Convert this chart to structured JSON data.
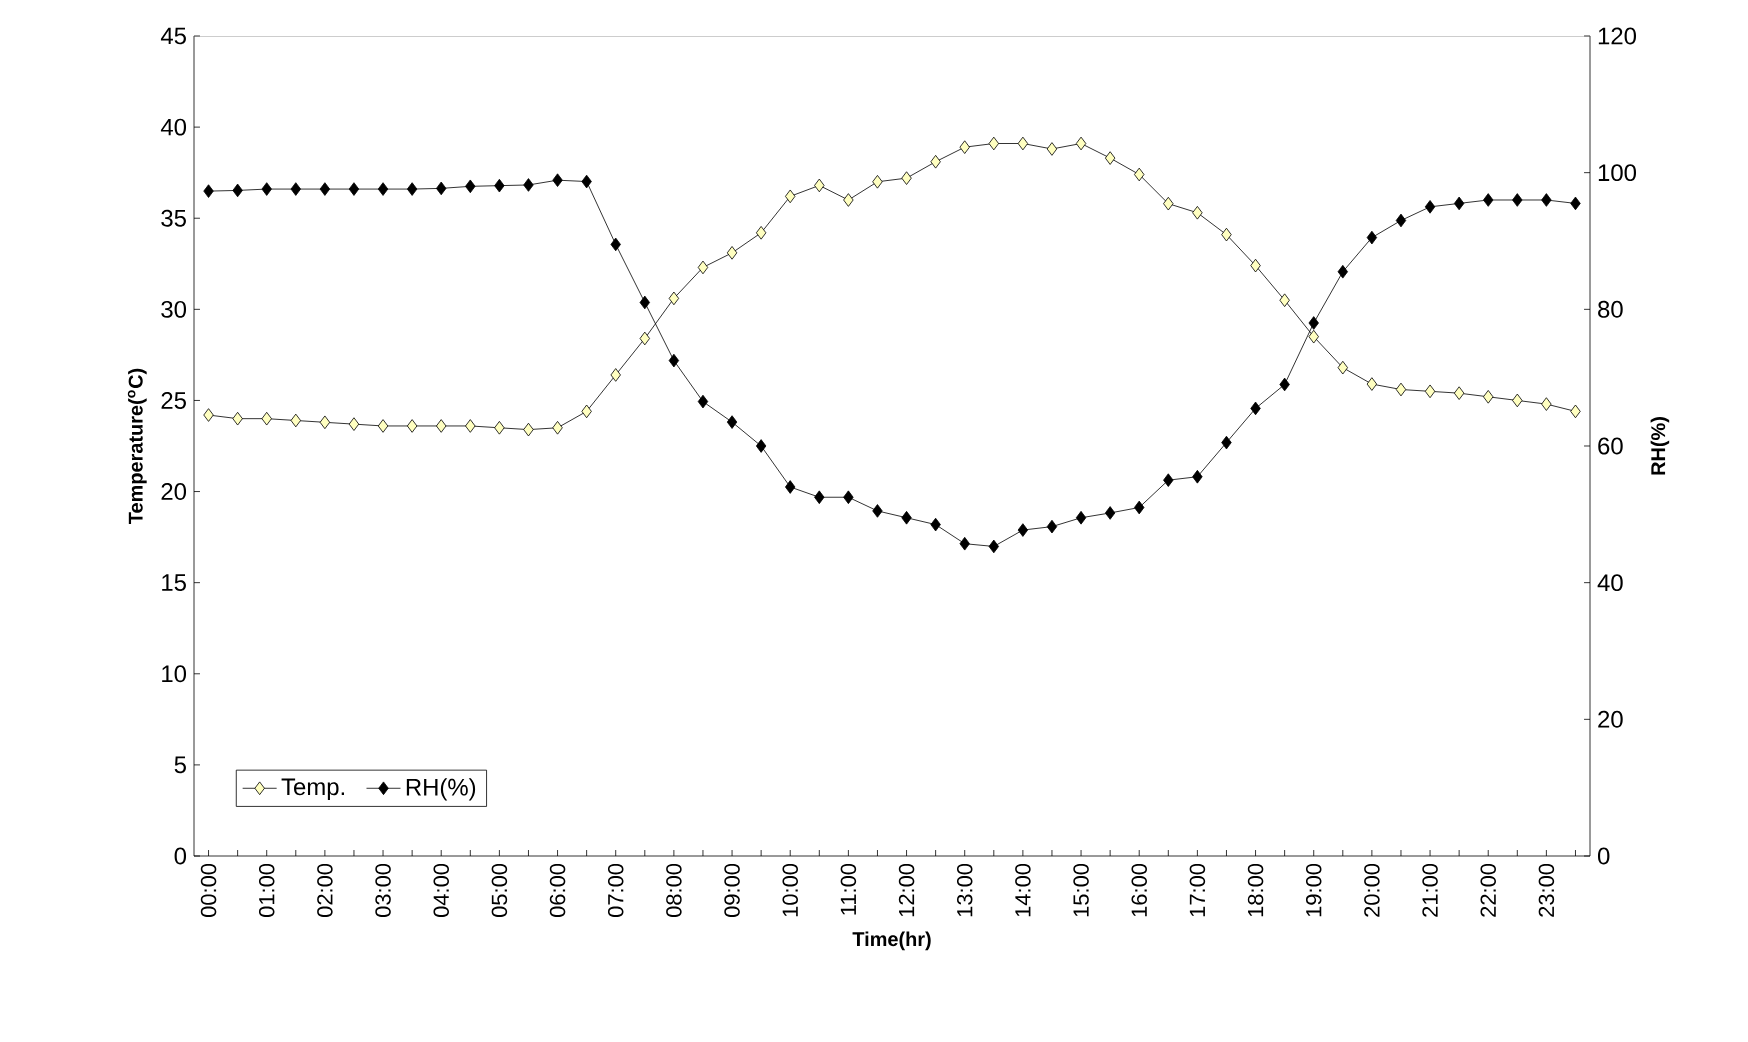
{
  "chart_data": {
    "type": "line",
    "xlabel": "Time(hr)",
    "ylabel": "Temperature($^{o}$C)",
    "y2label": "RH(%)",
    "categories": [
      "00:00",
      null,
      "01:00",
      null,
      "02:00",
      null,
      "03:00",
      null,
      "04:00",
      null,
      "05:00",
      null,
      "06:00",
      null,
      "07:00",
      null,
      "08:00",
      null,
      "09:00",
      null,
      "10:00",
      null,
      "11:00",
      null,
      "12:00",
      null,
      "13:00",
      null,
      "14:00",
      null,
      "15:00",
      null,
      "16:00",
      null,
      "17:00",
      null,
      "18:00",
      null,
      "19:00",
      null,
      "20:00",
      null,
      "21:00",
      null,
      "22:00",
      null,
      "23:00",
      null
    ],
    "series": [
      {
        "name": "Temp.",
        "color": "#ffffc0",
        "values": [
          24.2,
          24.0,
          24.0,
          23.9,
          23.8,
          23.7,
          23.6,
          23.6,
          23.6,
          23.6,
          23.5,
          23.4,
          23.5,
          24.4,
          26.4,
          28.4,
          30.6,
          32.3,
          33.1,
          34.2,
          36.2,
          36.8,
          36.0,
          37.0,
          37.2,
          38.1,
          38.9,
          39.1,
          39.1,
          38.8,
          39.1,
          38.3,
          37.4,
          35.8,
          35.3,
          34.1,
          32.4,
          30.5,
          28.5,
          26.8,
          25.9,
          25.6,
          25.5,
          25.4,
          25.2,
          25.0,
          24.8,
          24.4
        ]
      },
      {
        "name": "RH(%)",
        "color": "#000000",
        "axis": "y2",
        "values": [
          97.3,
          97.4,
          97.6,
          97.6,
          97.6,
          97.6,
          97.6,
          97.6,
          97.7,
          98.0,
          98.1,
          98.2,
          98.9,
          98.7,
          89.5,
          81.0,
          72.5,
          66.5,
          63.5,
          60.0,
          54.0,
          52.5,
          52.5,
          50.5,
          49.5,
          48.5,
          45.7,
          45.3,
          47.7,
          48.2,
          49.5,
          50.2,
          51.0,
          55.0,
          55.5,
          60.5,
          65.5,
          69.0,
          78.0,
          85.5,
          90.5,
          93.0,
          95.0,
          95.5,
          96.0,
          96.0,
          96.0,
          95.5
        ]
      }
    ],
    "ylim": [
      0,
      45
    ],
    "yticks": [
      0,
      5,
      10,
      15,
      20,
      25,
      30,
      35,
      40,
      45
    ],
    "y2lim": [
      0,
      120
    ],
    "y2ticks": [
      0,
      20,
      40,
      60,
      80,
      100,
      120
    ],
    "legend": "bottom left",
    "marker": "diamond",
    "line_style": "solid",
    "grid": false
  }
}
